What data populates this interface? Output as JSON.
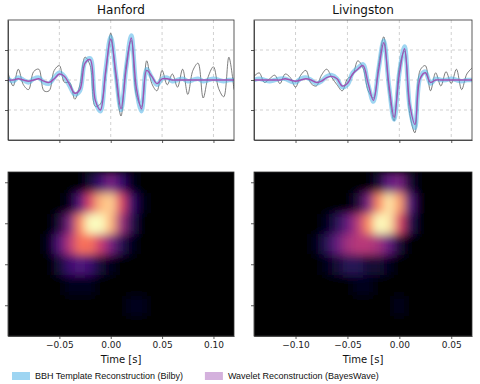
{
  "chart_data": [
    {
      "type": "line",
      "title": "Hanford",
      "x": [
        -0.1,
        -0.095,
        -0.09,
        -0.085,
        -0.08,
        -0.075,
        -0.07,
        -0.065,
        -0.06,
        -0.055,
        -0.05,
        -0.045,
        -0.04,
        -0.035,
        -0.03,
        -0.025,
        -0.02,
        -0.015,
        -0.01,
        -0.005,
        0,
        0.005,
        0.01,
        0.015,
        0.02,
        0.025,
        0.03,
        0.035,
        0.04,
        0.045,
        0.05,
        0.055,
        0.06,
        0.065,
        0.07,
        0.075,
        0.08,
        0.085,
        0.09,
        0.095,
        0.1,
        0.105,
        0.11,
        0.115,
        0.12
      ],
      "series": [
        {
          "color": "#555555",
          "values": [
            0.6,
            -0.5,
            0.9,
            -0.4,
            -0.8,
            0.7,
            0.9,
            -0.9,
            -0.9,
            0.8,
            1.2,
            -0.2,
            -0.2,
            -1.6,
            -0.4,
            1.9,
            1.2,
            -2.2,
            -2.0,
            0.4,
            3.9,
            0.0,
            -3.0,
            1.4,
            3.3,
            -1.3,
            -2.2,
            1.6,
            -0.3,
            -0.9,
            0.8,
            -0.4,
            0.5,
            -0.6,
            0.9,
            -1.2,
            0.8,
            1.4,
            -1.5,
            0.3,
            1.1,
            -0.7,
            -1.4,
            1.9,
            -0.8
          ]
        },
        {
          "name": "BBH Template Reconstruction (Bilby)",
          "color": "#4fb3e8",
          "values": [
            0.1,
            -0.1,
            0.2,
            0.0,
            -0.2,
            0.1,
            0.2,
            -0.2,
            -0.3,
            0.2,
            0.6,
            0.3,
            -0.5,
            -1.2,
            -0.9,
            1.5,
            1.8,
            -1.8,
            -2.6,
            0.8,
            3.6,
            0.5,
            -2.5,
            1.0,
            3.7,
            -0.8,
            -2.6,
            0.9,
            0.2,
            -0.4,
            0.1,
            0.2,
            -0.1,
            0.0,
            0.1,
            -0.1,
            0.0,
            0.1,
            -0.1,
            0.0,
            0.1,
            0.0,
            -0.1,
            0.0,
            0.0
          ]
        },
        {
          "name": "Wavelet Reconstruction (BayesWave)",
          "color": "#a052b4",
          "values": [
            0.0,
            0.0,
            0.1,
            0.0,
            -0.1,
            0.0,
            0.1,
            -0.1,
            -0.2,
            0.1,
            0.5,
            0.3,
            -0.4,
            -1.1,
            -0.8,
            1.4,
            1.7,
            -1.7,
            -2.5,
            0.7,
            3.4,
            0.6,
            -2.4,
            0.9,
            3.5,
            -0.7,
            -2.4,
            0.8,
            0.3,
            -0.3,
            0.1,
            0.1,
            0.0,
            0.0,
            0.0,
            0.0,
            0.0,
            0.0,
            0.0,
            0.0,
            0.0,
            0.0,
            0.0,
            0.0,
            0.0
          ]
        }
      ],
      "xlim": [
        -0.1,
        0.12
      ],
      "ylim": [
        -5,
        5
      ],
      "xticks": [
        -0.05,
        0,
        0.05,
        0.1
      ],
      "yticks": [
        -2.5,
        0,
        2.5
      ],
      "grid": true,
      "tick_labels": false,
      "legend": "bottom"
    },
    {
      "type": "line",
      "title": "Livingston",
      "x": [
        -0.14,
        -0.135,
        -0.13,
        -0.125,
        -0.12,
        -0.115,
        -0.11,
        -0.105,
        -0.1,
        -0.095,
        -0.09,
        -0.085,
        -0.08,
        -0.075,
        -0.07,
        -0.065,
        -0.06,
        -0.055,
        -0.05,
        -0.045,
        -0.04,
        -0.035,
        -0.03,
        -0.025,
        -0.02,
        -0.015,
        -0.01,
        -0.005,
        0,
        0.005,
        0.01,
        0.015,
        0.02,
        0.025,
        0.03,
        0.035,
        0.04,
        0.045,
        0.05,
        0.055,
        0.06,
        0.065,
        0.07
      ],
      "series": [
        {
          "color": "#555555",
          "values": [
            0.3,
            0.6,
            -0.2,
            0.1,
            0.4,
            -0.3,
            0.5,
            0.2,
            -0.6,
            0.4,
            0.8,
            -0.3,
            -0.5,
            0.4,
            0.9,
            0.2,
            -0.4,
            -0.9,
            0.1,
            0.4,
            1.6,
            1.0,
            -0.9,
            -1.5,
            1.3,
            3.6,
            -1.0,
            -3.4,
            1.1,
            2.4,
            -2.8,
            -4.4,
            0.8,
            1.2,
            -0.9,
            0.6,
            -0.5,
            0.7,
            -0.3,
            0.9,
            -0.8,
            0.5,
            1.0
          ]
        },
        {
          "color": "#4fb3e8",
          "values": [
            0.0,
            0.1,
            0.0,
            -0.1,
            0.0,
            0.1,
            0.1,
            -0.1,
            -0.2,
            0.1,
            0.2,
            0.0,
            -0.3,
            -0.1,
            0.3,
            0.4,
            0.1,
            -0.6,
            -0.4,
            0.6,
            1.0,
            1.3,
            -0.4,
            -1.8,
            0.9,
            3.3,
            -0.5,
            -3.3,
            0.6,
            2.8,
            -2.2,
            -4.0,
            0.2,
            0.7,
            -0.3,
            0.1,
            0.0,
            0.0,
            0.1,
            0.0,
            -0.1,
            0.0,
            0.0
          ]
        },
        {
          "color": "#a052b4",
          "values": [
            0.0,
            0.0,
            0.0,
            0.0,
            0.0,
            0.0,
            0.1,
            0.0,
            -0.1,
            0.0,
            0.1,
            0.0,
            -0.2,
            -0.1,
            0.2,
            0.3,
            0.1,
            -0.5,
            -0.3,
            0.5,
            0.9,
            1.2,
            -0.3,
            -1.7,
            0.8,
            3.1,
            -0.4,
            -3.1,
            0.5,
            2.6,
            -2.0,
            -3.7,
            0.1,
            0.6,
            -0.2,
            0.0,
            0.0,
            0.0,
            0.0,
            0.0,
            0.0,
            0.0,
            0.0
          ]
        }
      ],
      "xlim": [
        -0.14,
        0.07
      ],
      "ylim": [
        -5,
        5
      ],
      "xticks": [
        -0.1,
        -0.05,
        0,
        0.05
      ],
      "yticks": [
        -2.5,
        0,
        2.5
      ],
      "grid": true,
      "tick_labels": false
    },
    {
      "type": "heatmap",
      "xlabel": "Time [s]",
      "x": [
        -0.1,
        -0.09,
        -0.08,
        -0.07,
        -0.06,
        -0.05,
        -0.04,
        -0.03,
        -0.02,
        -0.01,
        0,
        0.01,
        0.02,
        0.03,
        0.04,
        0.05,
        0.06,
        0.07,
        0.08,
        0.09,
        0.1,
        0.11,
        0.12
      ],
      "y": [
        32,
        64,
        96,
        128,
        160,
        192,
        224,
        256
      ],
      "z": [
        [
          0,
          0,
          0,
          0,
          0,
          0,
          0,
          0,
          0,
          0,
          0,
          0,
          0,
          0,
          0,
          0,
          0,
          0,
          0,
          0,
          0,
          0,
          0
        ],
        [
          0,
          0,
          0,
          0,
          0,
          0,
          0,
          0,
          0,
          0,
          0,
          0,
          0.05,
          0.05,
          0,
          0,
          0,
          0,
          0,
          0,
          0,
          0,
          0
        ],
        [
          0,
          0,
          0,
          0,
          0,
          0,
          0.05,
          0.05,
          0.05,
          0,
          0,
          0,
          0,
          0,
          0,
          0,
          0,
          0,
          0,
          0,
          0,
          0,
          0
        ],
        [
          0,
          0,
          0,
          0,
          0,
          0.1,
          0.2,
          0.25,
          0.2,
          0.1,
          0.05,
          0,
          0,
          0,
          0,
          0,
          0,
          0,
          0,
          0,
          0,
          0,
          0
        ],
        [
          0,
          0,
          0,
          0,
          0.05,
          0.25,
          0.5,
          0.7,
          0.7,
          0.55,
          0.35,
          0.15,
          0.05,
          0,
          0,
          0,
          0,
          0,
          0,
          0,
          0,
          0,
          0
        ],
        [
          0,
          0,
          0,
          0,
          0,
          0.1,
          0.35,
          0.75,
          1.0,
          1.0,
          0.85,
          0.45,
          0.15,
          0,
          0,
          0,
          0,
          0,
          0,
          0,
          0,
          0,
          0
        ],
        [
          0,
          0,
          0,
          0,
          0,
          0,
          0.05,
          0.25,
          0.6,
          0.85,
          0.9,
          0.6,
          0.2,
          0.05,
          0,
          0,
          0,
          0,
          0,
          0,
          0,
          0,
          0
        ],
        [
          0,
          0,
          0,
          0,
          0,
          0,
          0,
          0,
          0.1,
          0.2,
          0.35,
          0.2,
          0.05,
          0,
          0,
          0,
          0,
          0,
          0,
          0,
          0,
          0,
          0
        ]
      ],
      "xlim": [
        -0.1,
        0.12
      ],
      "ylim": [
        16,
        272
      ],
      "xticks": [
        {
          "value": -0.05,
          "label": "−0.05"
        },
        {
          "value": 0,
          "label": "0.00"
        },
        0.05,
        {
          "value": 0.1,
          "label": "0.10"
        }
      ],
      "yticks": [
        64,
        128,
        192,
        256
      ],
      "tick_labels": "x"
    },
    {
      "type": "heatmap",
      "xlabel": "Time [s]",
      "x": [
        -0.14,
        -0.13,
        -0.12,
        -0.11,
        -0.1,
        -0.09,
        -0.08,
        -0.07,
        -0.06,
        -0.05,
        -0.04,
        -0.03,
        -0.02,
        -0.01,
        0,
        0.01,
        0.02,
        0.03,
        0.04,
        0.05,
        0.06,
        0.07
      ],
      "y": [
        32,
        64,
        96,
        128,
        160,
        192,
        224,
        256
      ],
      "z": [
        [
          0,
          0,
          0,
          0,
          0,
          0,
          0,
          0,
          0,
          0,
          0,
          0,
          0,
          0,
          0,
          0,
          0,
          0,
          0,
          0,
          0,
          0
        ],
        [
          0,
          0,
          0,
          0,
          0,
          0,
          0,
          0,
          0,
          0,
          0,
          0,
          0,
          0,
          0.05,
          0,
          0,
          0,
          0,
          0,
          0,
          0
        ],
        [
          0,
          0,
          0,
          0,
          0,
          0,
          0,
          0,
          0,
          0,
          0.05,
          0.05,
          0,
          0,
          0,
          0,
          0,
          0,
          0,
          0,
          0,
          0
        ],
        [
          0,
          0,
          0,
          0,
          0,
          0,
          0,
          0.05,
          0.1,
          0.15,
          0.15,
          0.1,
          0.1,
          0.05,
          0,
          0,
          0,
          0,
          0,
          0,
          0,
          0
        ],
        [
          0,
          0,
          0,
          0,
          0,
          0,
          0.05,
          0.15,
          0.3,
          0.45,
          0.5,
          0.5,
          0.45,
          0.3,
          0.1,
          0,
          0,
          0,
          0,
          0,
          0,
          0
        ],
        [
          0,
          0,
          0,
          0,
          0,
          0,
          0,
          0.05,
          0.15,
          0.3,
          0.5,
          0.75,
          1.0,
          0.95,
          0.6,
          0.15,
          0,
          0,
          0,
          0,
          0,
          0
        ],
        [
          0,
          0,
          0,
          0,
          0,
          0,
          0,
          0,
          0,
          0,
          0.1,
          0.35,
          0.75,
          0.95,
          0.8,
          0.25,
          0,
          0,
          0,
          0,
          0,
          0
        ],
        [
          0,
          0,
          0,
          0,
          0,
          0,
          0,
          0,
          0,
          0,
          0,
          0,
          0.1,
          0.3,
          0.35,
          0.1,
          0,
          0,
          0,
          0,
          0,
          0
        ]
      ],
      "xlim": [
        -0.14,
        0.07
      ],
      "ylim": [
        16,
        272
      ],
      "xticks": [
        {
          "value": -0.1,
          "label": "−0.10"
        },
        {
          "value": -0.05,
          "label": "−0.05"
        },
        {
          "value": 0,
          "label": "0.00"
        },
        0.05
      ],
      "yticks": [
        64,
        128,
        192,
        256
      ],
      "tick_labels": "x"
    }
  ]
}
